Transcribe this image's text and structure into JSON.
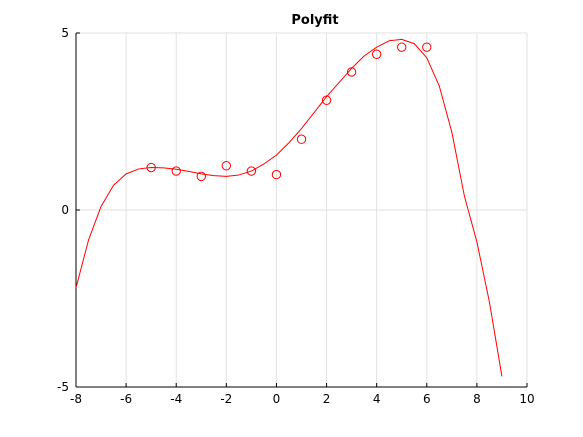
{
  "chart_data": {
    "type": "scatter",
    "title": "Polyfit",
    "xlabel": "",
    "ylabel": "",
    "xlim": [
      -8,
      10
    ],
    "ylim": [
      -5,
      5
    ],
    "x_ticks": [
      -8,
      -6,
      -4,
      -2,
      0,
      2,
      4,
      6,
      8,
      10
    ],
    "y_ticks": [
      -5,
      0,
      5
    ],
    "grid": true,
    "legend": "none",
    "series": [
      {
        "kind": "markers",
        "marker": "circle-open",
        "color": "#ff0000",
        "x": [
          -5,
          -4,
          -3,
          -2,
          -1,
          0,
          1,
          2,
          3,
          4,
          5,
          6
        ],
        "y": [
          1.2,
          1.1,
          0.95,
          1.25,
          1.1,
          1.0,
          2.0,
          3.1,
          3.9,
          4.4,
          4.6,
          4.6
        ]
      },
      {
        "kind": "line",
        "color": "#ff0000",
        "x": [
          -8,
          -7.5,
          -7,
          -6.5,
          -6,
          -5.5,
          -5,
          -4.5,
          -4,
          -3.5,
          -3,
          -2.5,
          -2,
          -1.5,
          -1,
          -0.5,
          0,
          0.5,
          1,
          1.5,
          2,
          2.5,
          3,
          3.5,
          4,
          4.5,
          5,
          5.5,
          6,
          6.5,
          7,
          7.5,
          8,
          8.5,
          9
        ],
        "y": [
          -2.2,
          -0.85,
          0.1,
          0.7,
          1.02,
          1.16,
          1.2,
          1.19,
          1.15,
          1.09,
          1.02,
          0.97,
          0.95,
          0.99,
          1.1,
          1.3,
          1.55,
          1.9,
          2.3,
          2.75,
          3.2,
          3.6,
          4.0,
          4.35,
          4.6,
          4.78,
          4.82,
          4.7,
          4.3,
          3.5,
          2.2,
          0.4,
          -0.9,
          -2.6,
          -4.7
        ]
      }
    ]
  }
}
